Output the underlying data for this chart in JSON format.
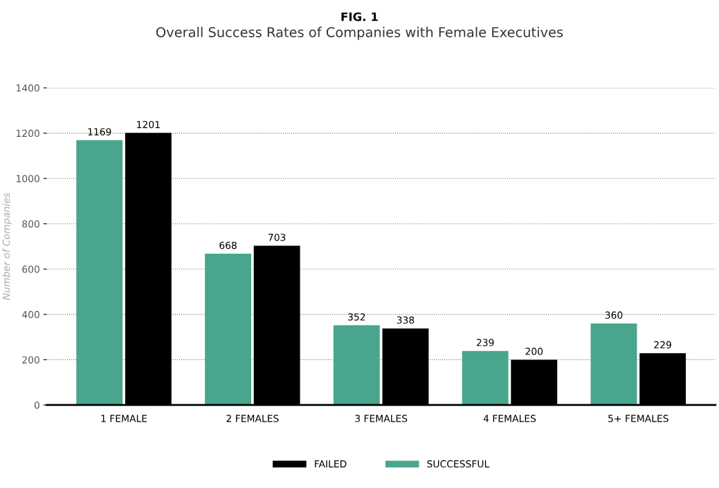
{
  "chart_data": {
    "type": "bar",
    "title": "FIG. 1",
    "subtitle": "Overall Success Rates of Companies with Female Executives",
    "ylabel": "Number of Companies",
    "categories": [
      "1 FEMALE",
      "2 FEMALES",
      "3 FEMALES",
      "4 FEMALES",
      "5+ FEMALES"
    ],
    "series": [
      {
        "name": "SUCCESSFUL",
        "color": "#4aa58e",
        "values": [
          1169,
          668,
          352,
          239,
          360
        ]
      },
      {
        "name": "FAILED",
        "color": "#000000",
        "values": [
          1201,
          703,
          338,
          200,
          229
        ]
      }
    ],
    "ylim": [
      0,
      1400
    ],
    "yticks": [
      0,
      200,
      400,
      600,
      800,
      1000,
      1200,
      1400
    ],
    "grid": "y",
    "legend": "bottom",
    "data_labels": true
  }
}
